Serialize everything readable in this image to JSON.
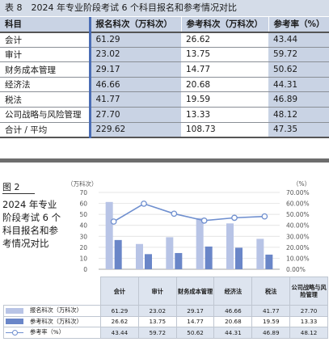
{
  "table8": {
    "caption": "表 8　2024 年专业阶段考试 6 个科目报名和参考情况对比",
    "headers": [
      "科目",
      "报名科次（万科次）",
      "参考科次（万科次）",
      "参考率（%）"
    ],
    "rows": [
      [
        "会计",
        "61.29",
        "26.62",
        "43.44"
      ],
      [
        "审计",
        "23.02",
        "13.75",
        "59.72"
      ],
      [
        "财务成本管理",
        "29.17",
        "14.77",
        "50.62"
      ],
      [
        "经济法",
        "46.66",
        "20.68",
        "44.31"
      ],
      [
        "税法",
        "41.77",
        "19.59",
        "46.89"
      ],
      [
        "公司战略与风险管理",
        "27.70",
        "13.33",
        "48.12"
      ],
      [
        "合计 / 平均",
        "229.62",
        "108.73",
        "47.35"
      ]
    ]
  },
  "figure": {
    "label": "图 2",
    "title": "2024 年专业阶段考试 6 个科目报名和参考情况对比",
    "unit_left": "（万科次）",
    "unit_right": "（%）"
  },
  "chart_data": {
    "type": "bar",
    "categories": [
      "会计",
      "审计",
      "财务成本管理",
      "经济法",
      "税法",
      "公司战略与风险管理"
    ],
    "series": [
      {
        "name": "报名科次（万科次）",
        "type": "bar",
        "axis": "left",
        "color": "#b8c4e6",
        "values": [
          61.29,
          23.02,
          29.17,
          46.66,
          41.77,
          27.7
        ]
      },
      {
        "name": "参考科次（万科次）",
        "type": "bar",
        "axis": "left",
        "color": "#6a86c8",
        "values": [
          26.62,
          13.75,
          14.77,
          20.68,
          19.59,
          13.33
        ]
      },
      {
        "name": "参考率（%）",
        "type": "line",
        "axis": "right",
        "color": "#6f8fcf",
        "values": [
          43.44,
          59.72,
          50.62,
          44.31,
          46.89,
          48.12
        ]
      }
    ],
    "y_left": {
      "ylim": [
        0,
        70
      ],
      "ticks": [
        "0",
        "10",
        "20",
        "30",
        "40",
        "50",
        "60",
        "70"
      ]
    },
    "y_right": {
      "ylim": [
        0,
        70
      ],
      "ticks": [
        "0.00%",
        "10.00%",
        "20.00%",
        "30.00%",
        "40.00%",
        "50.00%",
        "60.00%",
        "70.00%"
      ]
    },
    "grid": true,
    "legend": "table-below"
  },
  "figure_table": {
    "categories": [
      "会计",
      "审计",
      "财务成本管理",
      "经济法",
      "税法",
      "公司战略与风险管理"
    ],
    "rows": [
      {
        "label": "报名科次（万科次）",
        "values": [
          "61.29",
          "23.02",
          "29.17",
          "46.66",
          "41.77",
          "27.70"
        ]
      },
      {
        "label": "参考科次（万科次）",
        "values": [
          "26.62",
          "13.75",
          "14.77",
          "20.68",
          "19.59",
          "13.33"
        ]
      },
      {
        "label": "参考率（%）",
        "values": [
          "43.44",
          "59.72",
          "50.62",
          "44.31",
          "46.89",
          "48.12"
        ]
      }
    ]
  }
}
